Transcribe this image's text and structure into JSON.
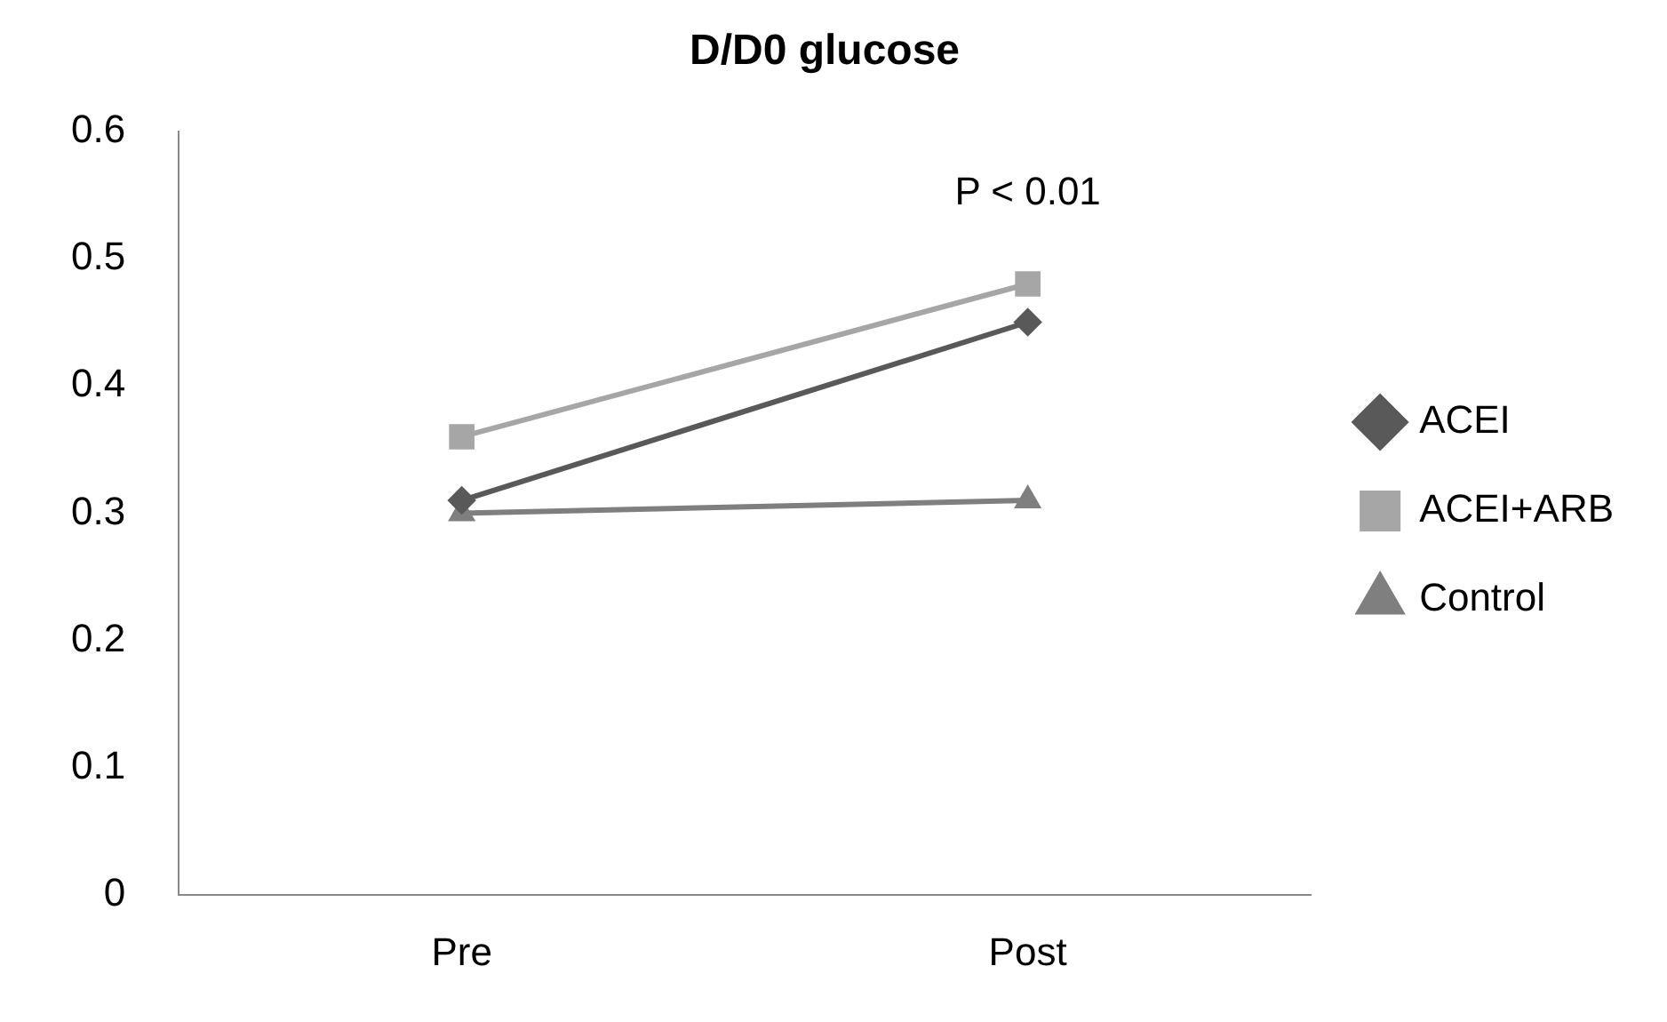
{
  "chart_data": {
    "type": "line",
    "title": "D/D0 glucose",
    "categories": [
      "Pre",
      "Post"
    ],
    "series": [
      {
        "name": "ACEI",
        "color": "#595959",
        "values": [
          0.31,
          0.45
        ],
        "marker": "diamond"
      },
      {
        "name": "ACEI+ARB",
        "color": "#a6a6a6",
        "values": [
          0.36,
          0.48
        ],
        "marker": "square"
      },
      {
        "name": "Control",
        "color": "#7f7f7f",
        "values": [
          0.3,
          0.31
        ],
        "marker": "triangle"
      }
    ],
    "ylim": [
      0,
      0.6
    ],
    "yticks": [
      0,
      0.1,
      0.2,
      0.3,
      0.4,
      0.5,
      0.6
    ],
    "grid": false,
    "legend": "right",
    "line_style": "solid",
    "annotations": [
      "P < 0.01"
    ]
  }
}
